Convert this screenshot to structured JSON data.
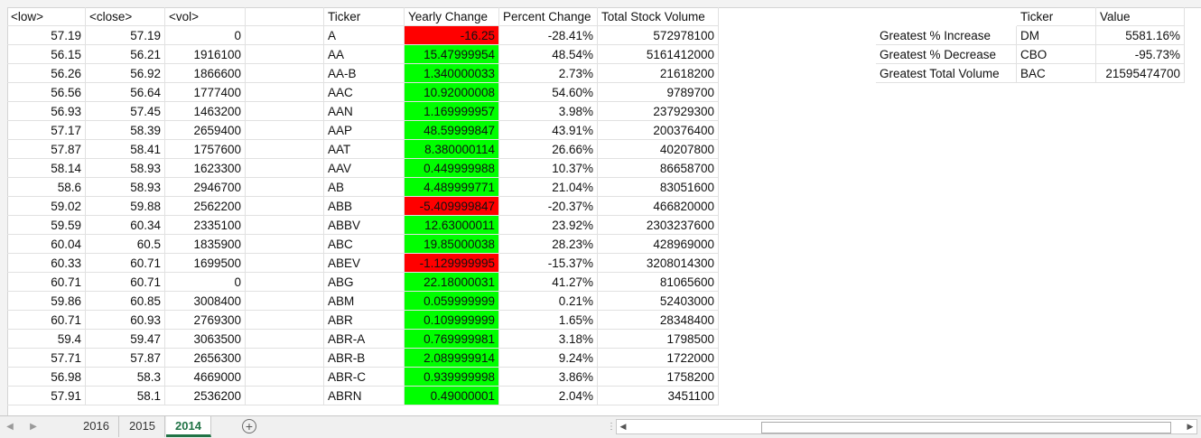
{
  "main_headers": {
    "low": "<low>",
    "close": "<close>",
    "vol": "<vol>",
    "ticker": "Ticker",
    "yearly_change": "Yearly  Change",
    "percent_change": "Percent Change",
    "total_volume": "Total Stock Volume"
  },
  "rows": [
    {
      "low": "57.19",
      "close": "57.19",
      "vol": "0",
      "ticker": "A",
      "yc": "-16.25",
      "pc": "-28.41%",
      "tv": "572978100",
      "pos": false
    },
    {
      "low": "56.15",
      "close": "56.21",
      "vol": "1916100",
      "ticker": "AA",
      "yc": "15.47999954",
      "pc": "48.54%",
      "tv": "5161412000",
      "pos": true
    },
    {
      "low": "56.26",
      "close": "56.92",
      "vol": "1866600",
      "ticker": "AA-B",
      "yc": "1.340000033",
      "pc": "2.73%",
      "tv": "21618200",
      "pos": true
    },
    {
      "low": "56.56",
      "close": "56.64",
      "vol": "1777400",
      "ticker": "AAC",
      "yc": "10.92000008",
      "pc": "54.60%",
      "tv": "9789700",
      "pos": true
    },
    {
      "low": "56.93",
      "close": "57.45",
      "vol": "1463200",
      "ticker": "AAN",
      "yc": "1.169999957",
      "pc": "3.98%",
      "tv": "237929300",
      "pos": true
    },
    {
      "low": "57.17",
      "close": "58.39",
      "vol": "2659400",
      "ticker": "AAP",
      "yc": "48.59999847",
      "pc": "43.91%",
      "tv": "200376400",
      "pos": true
    },
    {
      "low": "57.87",
      "close": "58.41",
      "vol": "1757600",
      "ticker": "AAT",
      "yc": "8.380000114",
      "pc": "26.66%",
      "tv": "40207800",
      "pos": true
    },
    {
      "low": "58.14",
      "close": "58.93",
      "vol": "1623300",
      "ticker": "AAV",
      "yc": "0.449999988",
      "pc": "10.37%",
      "tv": "86658700",
      "pos": true
    },
    {
      "low": "58.6",
      "close": "58.93",
      "vol": "2946700",
      "ticker": "AB",
      "yc": "4.489999771",
      "pc": "21.04%",
      "tv": "83051600",
      "pos": true
    },
    {
      "low": "59.02",
      "close": "59.88",
      "vol": "2562200",
      "ticker": "ABB",
      "yc": "-5.409999847",
      "pc": "-20.37%",
      "tv": "466820000",
      "pos": false
    },
    {
      "low": "59.59",
      "close": "60.34",
      "vol": "2335100",
      "ticker": "ABBV",
      "yc": "12.63000011",
      "pc": "23.92%",
      "tv": "2303237600",
      "pos": true
    },
    {
      "low": "60.04",
      "close": "60.5",
      "vol": "1835900",
      "ticker": "ABC",
      "yc": "19.85000038",
      "pc": "28.23%",
      "tv": "428969000",
      "pos": true
    },
    {
      "low": "60.33",
      "close": "60.71",
      "vol": "1699500",
      "ticker": "ABEV",
      "yc": "-1.129999995",
      "pc": "-15.37%",
      "tv": "3208014300",
      "pos": false
    },
    {
      "low": "60.71",
      "close": "60.71",
      "vol": "0",
      "ticker": "ABG",
      "yc": "22.18000031",
      "pc": "41.27%",
      "tv": "81065600",
      "pos": true
    },
    {
      "low": "59.86",
      "close": "60.85",
      "vol": "3008400",
      "ticker": "ABM",
      "yc": "0.059999999",
      "pc": "0.21%",
      "tv": "52403000",
      "pos": true
    },
    {
      "low": "60.71",
      "close": "60.93",
      "vol": "2769300",
      "ticker": "ABR",
      "yc": "0.109999999",
      "pc": "1.65%",
      "tv": "28348400",
      "pos": true
    },
    {
      "low": "59.4",
      "close": "59.47",
      "vol": "3063500",
      "ticker": "ABR-A",
      "yc": "0.769999981",
      "pc": "3.18%",
      "tv": "1798500",
      "pos": true
    },
    {
      "low": "57.71",
      "close": "57.87",
      "vol": "2656300",
      "ticker": "ABR-B",
      "yc": "2.089999914",
      "pc": "9.24%",
      "tv": "1722000",
      "pos": true
    },
    {
      "low": "56.98",
      "close": "58.3",
      "vol": "4669000",
      "ticker": "ABR-C",
      "yc": "0.939999998",
      "pc": "3.86%",
      "tv": "1758200",
      "pos": true
    },
    {
      "low": "57.91",
      "close": "58.1",
      "vol": "2536200",
      "ticker": "ABRN",
      "yc": "0.49000001",
      "pc": "2.04%",
      "tv": "3451100",
      "pos": true
    }
  ],
  "summary": {
    "headers": {
      "ticker": "Ticker",
      "value": "Value"
    },
    "rows": [
      {
        "label": "Greatest % Increase",
        "ticker": "DM",
        "value": "5581.16%"
      },
      {
        "label": "Greatest % Decrease",
        "ticker": "CBO",
        "value": "-95.73%"
      },
      {
        "label": "Greatest Total Volume",
        "ticker": "BAC",
        "value": "21595474700"
      }
    ]
  },
  "tabs": [
    {
      "label": "2016"
    },
    {
      "label": "2015"
    },
    {
      "label": "2014",
      "active": true
    }
  ],
  "add_sheet_symbol": "+",
  "colors": {
    "positive": "#00ff00",
    "negative": "#ff0000",
    "accent": "#217346"
  }
}
